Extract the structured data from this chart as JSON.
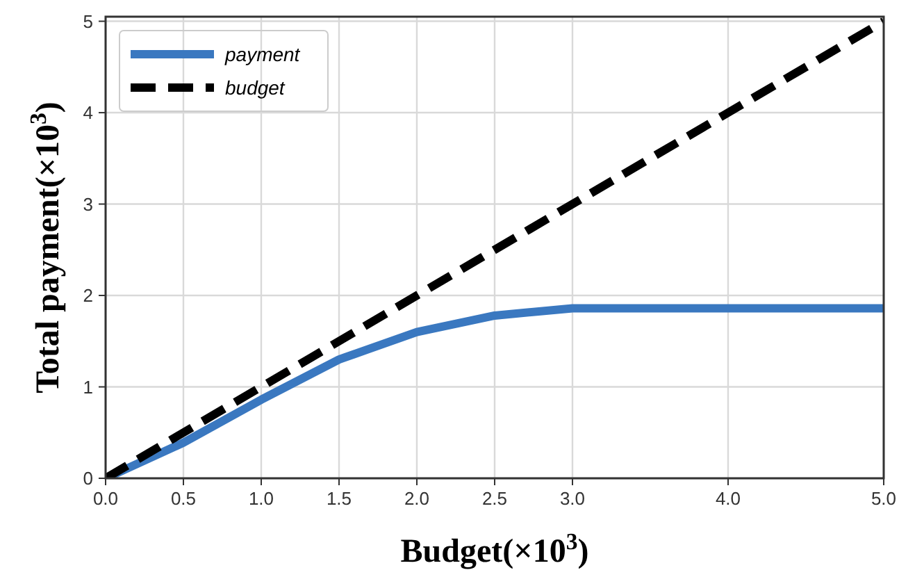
{
  "chart_data": {
    "type": "line",
    "xlabel": "Budget(×10$^{3}$)",
    "ylabel": "Total payment(×10$^{3}$)",
    "xlim": [
      0,
      5
    ],
    "xticks": [
      {
        "value": 0,
        "label": "0.0"
      },
      {
        "value": 0.5,
        "label": "0.5"
      },
      {
        "value": 1,
        "label": "1.0"
      },
      {
        "value": 1.5,
        "label": "1.5"
      },
      {
        "value": 2,
        "label": "2.0"
      },
      {
        "value": 2.5,
        "label": "2.5"
      },
      {
        "value": 3,
        "label": "3.0"
      },
      {
        "value": 4,
        "label": "4.0"
      },
      {
        "value": 5,
        "label": "5.0"
      }
    ],
    "ylim": [
      0,
      5.05
    ],
    "yticks": [
      0,
      1,
      2,
      3,
      4,
      5
    ],
    "grid": true,
    "legend": "top left",
    "series": [
      {
        "name": "payment",
        "color": "#3a78c0",
        "line_style": "solid",
        "x": [
          0,
          0.5,
          1,
          1.5,
          2,
          2.5,
          3,
          4,
          5
        ],
        "values": [
          0,
          0.39,
          0.86,
          1.3,
          1.6,
          1.78,
          1.86,
          1.86,
          1.86
        ]
      },
      {
        "name": "budget",
        "color": "#000000",
        "line_style": "dashed",
        "x": [
          0,
          5
        ],
        "values": [
          0,
          5
        ]
      }
    ]
  }
}
